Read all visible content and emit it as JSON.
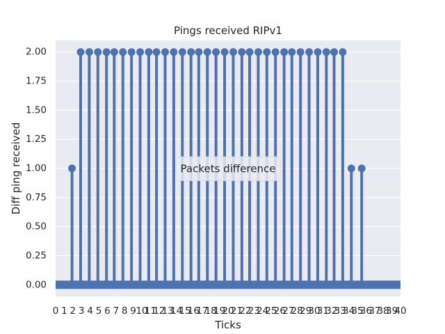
{
  "chart_data": {
    "type": "stem",
    "title": "Pings received RIPv1",
    "xlabel": "Ticks",
    "ylabel": "Diff ping received",
    "legend": {
      "label": "Packets difference",
      "placement": "center"
    },
    "xlim": [
      0,
      40
    ],
    "ylim": [
      -0.1,
      2.1
    ],
    "yticks": [
      "0.00",
      "0.25",
      "0.50",
      "0.75",
      "1.00",
      "1.25",
      "1.50",
      "1.75",
      "2.00"
    ],
    "x": [
      1.9,
      2.9,
      3.9,
      4.9,
      5.9,
      6.8,
      7.8,
      8.8,
      9.8,
      10.8,
      11.7,
      12.7,
      13.7,
      14.7,
      15.7,
      16.6,
      17.6,
      18.6,
      19.6,
      20.6,
      21.6,
      22.5,
      23.5,
      24.5,
      25.5,
      26.5,
      27.4,
      28.4,
      29.4,
      30.4,
      31.4,
      32.3,
      33.3,
      34.3,
      35.5
    ],
    "y": [
      1,
      2,
      2,
      2,
      2,
      2,
      2,
      2,
      2,
      2,
      2,
      2,
      2,
      2,
      2,
      2,
      2,
      2,
      2,
      2,
      2,
      2,
      2,
      2,
      2,
      2,
      2,
      2,
      2,
      2,
      2,
      2,
      2,
      1,
      1
    ],
    "baseline": 0,
    "grid": true,
    "colors": {
      "stem": "#4c72b0",
      "background": "#eaeaf2",
      "grid": "#ffffff"
    }
  }
}
